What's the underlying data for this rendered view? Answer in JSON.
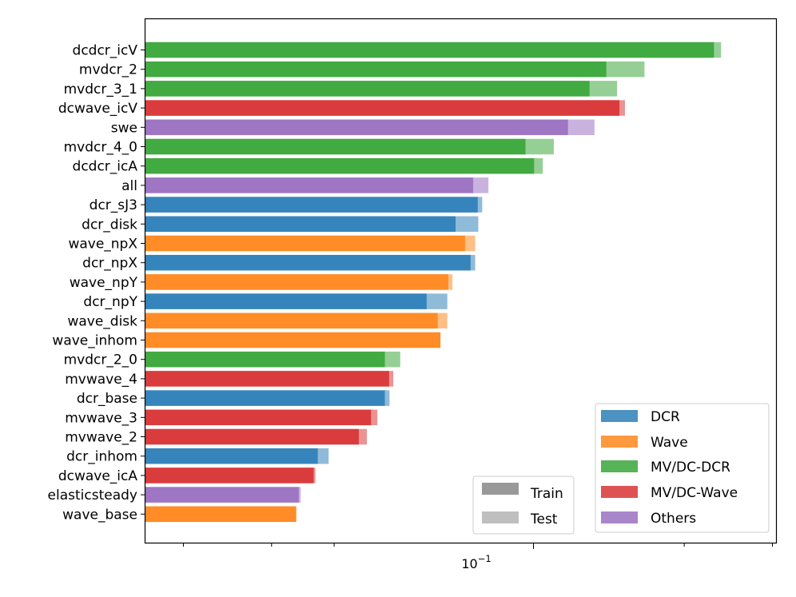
{
  "chart_data": {
    "type": "bar",
    "orientation": "horizontal",
    "x_scale": "log",
    "xlim": [
      0.0168,
      0.305
    ],
    "x_major_tick": 0.1,
    "x_major_tick_label": "10",
    "x_major_tick_exponent": "−1",
    "x_minor_ticks": [
      0.02,
      0.03,
      0.04,
      0.2,
      0.3
    ],
    "xlabel": "",
    "ylabel": "",
    "title": "",
    "categories": [
      "dcdcr_icV",
      "mvdcr_2",
      "mvdcr_3_1",
      "dcwave_icV",
      "swe",
      "mvdcr_4_0",
      "dcdcr_icA",
      "all",
      "dcr_sJ3",
      "dcr_disk",
      "wave_npX",
      "dcr_npX",
      "wave_npY",
      "dcr_npY",
      "wave_disk",
      "wave_inhom",
      "mvdcr_2_0",
      "mvwave_4",
      "dcr_base",
      "mvwave_3",
      "mvwave_2",
      "dcr_inhom",
      "dcwave_icA",
      "elasticsteady",
      "wave_base"
    ],
    "groups": [
      "MV/DC-DCR",
      "MV/DC-DCR",
      "MV/DC-DCR",
      "MV/DC-Wave",
      "Others",
      "MV/DC-DCR",
      "MV/DC-DCR",
      "Others",
      "DCR",
      "DCR",
      "Wave",
      "DCR",
      "Wave",
      "DCR",
      "Wave",
      "Wave",
      "MV/DC-DCR",
      "MV/DC-Wave",
      "DCR",
      "MV/DC-Wave",
      "MV/DC-Wave",
      "DCR",
      "MV/DC-Wave",
      "Others",
      "Wave"
    ],
    "series": [
      {
        "name": "Train",
        "values": [
          0.2293,
          0.1398,
          0.1294,
          0.1485,
          0.1172,
          0.0964,
          0.1003,
          0.0758,
          0.0774,
          0.0699,
          0.073,
          0.0749,
          0.0676,
          0.0612,
          0.0644,
          0.0652,
          0.0505,
          0.0515,
          0.0505,
          0.0474,
          0.0448,
          0.0371,
          0.0364,
          0.034,
          0.0336
        ]
      },
      {
        "name": "Test",
        "values": [
          0.2369,
          0.1666,
          0.1469,
          0.1523,
          0.1324,
          0.1098,
          0.1044,
          0.0813,
          0.079,
          0.0776,
          0.0765,
          0.0765,
          0.0689,
          0.0673,
          0.0673,
          0.0652,
          0.0542,
          0.0525,
          0.0516,
          0.0488,
          0.0465,
          0.039,
          0.0367,
          0.0343,
          0.0336
        ]
      }
    ],
    "legend_groups": {
      "position": "lower-right",
      "entries": [
        {
          "label": "DCR",
          "color": "#1f77b4"
        },
        {
          "label": "Wave",
          "color": "#ff7f0e"
        },
        {
          "label": "MV/DC-DCR",
          "color": "#2ca02c"
        },
        {
          "label": "MV/DC-Wave",
          "color": "#d62728"
        },
        {
          "label": "Others",
          "color": "#9467bd"
        }
      ]
    },
    "legend_split": {
      "position": "lower-center-right",
      "entries": [
        {
          "label": "Train",
          "color": "#808080"
        },
        {
          "label": "Test",
          "color": "#808080"
        }
      ]
    },
    "train_opacity": 0.8,
    "test_opacity": 0.5
  }
}
